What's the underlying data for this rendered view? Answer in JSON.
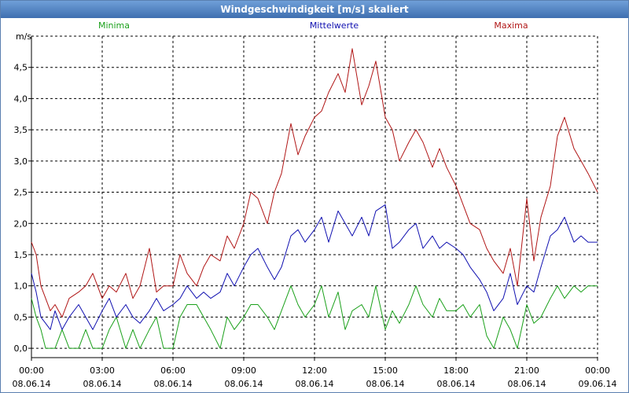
{
  "window": {
    "title": "Windgeschwindigkeit [m/s] skaliert"
  },
  "chart_data": {
    "type": "line",
    "title": "Windgeschwindigkeit [m/s] skaliert",
    "ylabel": "m/s",
    "ylim": [
      -0.15,
      5.0
    ],
    "xlim_hours": [
      0,
      24
    ],
    "y_ticks": [
      {
        "value": 0.0,
        "label": "0,0"
      },
      {
        "value": 0.5,
        "label": "0,5"
      },
      {
        "value": 1.0,
        "label": "1,0"
      },
      {
        "value": 1.5,
        "label": "1,5"
      },
      {
        "value": 2.0,
        "label": "2,0"
      },
      {
        "value": 2.5,
        "label": "2,5"
      },
      {
        "value": 3.0,
        "label": "3,0"
      },
      {
        "value": 3.5,
        "label": "3,5"
      },
      {
        "value": 4.0,
        "label": "4,0"
      },
      {
        "value": 4.5,
        "label": "4,5"
      }
    ],
    "x_ticks": [
      {
        "hour": 0,
        "time": "00:00",
        "date": "08.06.14"
      },
      {
        "hour": 3,
        "time": "03:00",
        "date": "08.06.14"
      },
      {
        "hour": 6,
        "time": "06:00",
        "date": "08.06.14"
      },
      {
        "hour": 9,
        "time": "09:00",
        "date": "08.06.14"
      },
      {
        "hour": 12,
        "time": "12:00",
        "date": "08.06.14"
      },
      {
        "hour": 15,
        "time": "15:00",
        "date": "08.06.14"
      },
      {
        "hour": 18,
        "time": "18:00",
        "date": "08.06.14"
      },
      {
        "hour": 21,
        "time": "21:00",
        "date": "08.06.14"
      },
      {
        "hour": 24,
        "time": "00:00",
        "date": "09.06.14"
      }
    ],
    "grid": true,
    "series": [
      {
        "name": "Minima",
        "color": "#1aa01a",
        "points": [
          [
            0.0,
            0.8
          ],
          [
            0.2,
            0.5
          ],
          [
            0.4,
            0.3
          ],
          [
            0.6,
            0.0
          ],
          [
            0.8,
            0.0
          ],
          [
            1.0,
            0.0
          ],
          [
            1.3,
            0.3
          ],
          [
            1.6,
            0.0
          ],
          [
            2.0,
            0.0
          ],
          [
            2.3,
            0.3
          ],
          [
            2.6,
            0.0
          ],
          [
            3.0,
            0.0
          ],
          [
            3.3,
            0.3
          ],
          [
            3.6,
            0.5
          ],
          [
            4.0,
            0.0
          ],
          [
            4.3,
            0.3
          ],
          [
            4.6,
            0.0
          ],
          [
            5.0,
            0.3
          ],
          [
            5.3,
            0.5
          ],
          [
            5.6,
            0.0
          ],
          [
            6.0,
            0.0
          ],
          [
            6.3,
            0.5
          ],
          [
            6.6,
            0.7
          ],
          [
            7.0,
            0.7
          ],
          [
            7.3,
            0.5
          ],
          [
            7.6,
            0.3
          ],
          [
            8.0,
            0.0
          ],
          [
            8.3,
            0.5
          ],
          [
            8.6,
            0.3
          ],
          [
            9.0,
            0.5
          ],
          [
            9.3,
            0.7
          ],
          [
            9.6,
            0.7
          ],
          [
            10.0,
            0.5
          ],
          [
            10.3,
            0.3
          ],
          [
            10.6,
            0.6
          ],
          [
            11.0,
            1.0
          ],
          [
            11.3,
            0.7
          ],
          [
            11.6,
            0.5
          ],
          [
            12.0,
            0.7
          ],
          [
            12.3,
            1.0
          ],
          [
            12.6,
            0.5
          ],
          [
            13.0,
            0.9
          ],
          [
            13.3,
            0.3
          ],
          [
            13.6,
            0.6
          ],
          [
            14.0,
            0.7
          ],
          [
            14.3,
            0.5
          ],
          [
            14.6,
            1.0
          ],
          [
            15.0,
            0.3
          ],
          [
            15.3,
            0.6
          ],
          [
            15.6,
            0.4
          ],
          [
            16.0,
            0.7
          ],
          [
            16.3,
            1.0
          ],
          [
            16.6,
            0.7
          ],
          [
            17.0,
            0.5
          ],
          [
            17.3,
            0.8
          ],
          [
            17.6,
            0.6
          ],
          [
            18.0,
            0.6
          ],
          [
            18.3,
            0.7
          ],
          [
            18.6,
            0.5
          ],
          [
            19.0,
            0.7
          ],
          [
            19.3,
            0.2
          ],
          [
            19.6,
            0.0
          ],
          [
            20.0,
            0.5
          ],
          [
            20.3,
            0.3
          ],
          [
            20.6,
            0.0
          ],
          [
            21.0,
            0.7
          ],
          [
            21.3,
            0.4
          ],
          [
            21.6,
            0.5
          ],
          [
            22.0,
            0.8
          ],
          [
            22.3,
            1.0
          ],
          [
            22.6,
            0.8
          ],
          [
            23.0,
            1.0
          ],
          [
            23.3,
            0.9
          ],
          [
            23.6,
            1.0
          ],
          [
            24.0,
            1.0
          ]
        ]
      },
      {
        "name": "Mittelwerte",
        "color": "#1010b0",
        "points": [
          [
            0.0,
            1.2
          ],
          [
            0.2,
            0.9
          ],
          [
            0.4,
            0.5
          ],
          [
            0.6,
            0.4
          ],
          [
            0.8,
            0.3
          ],
          [
            1.0,
            0.6
          ],
          [
            1.3,
            0.3
          ],
          [
            1.6,
            0.5
          ],
          [
            2.0,
            0.7
          ],
          [
            2.3,
            0.5
          ],
          [
            2.6,
            0.3
          ],
          [
            3.0,
            0.6
          ],
          [
            3.3,
            0.8
          ],
          [
            3.6,
            0.5
          ],
          [
            4.0,
            0.7
          ],
          [
            4.3,
            0.5
          ],
          [
            4.6,
            0.4
          ],
          [
            5.0,
            0.6
          ],
          [
            5.3,
            0.8
          ],
          [
            5.6,
            0.6
          ],
          [
            6.0,
            0.7
          ],
          [
            6.3,
            0.8
          ],
          [
            6.6,
            1.0
          ],
          [
            7.0,
            0.8
          ],
          [
            7.3,
            0.9
          ],
          [
            7.6,
            0.8
          ],
          [
            8.0,
            0.9
          ],
          [
            8.3,
            1.2
          ],
          [
            8.6,
            1.0
          ],
          [
            9.0,
            1.3
          ],
          [
            9.3,
            1.5
          ],
          [
            9.6,
            1.6
          ],
          [
            10.0,
            1.3
          ],
          [
            10.3,
            1.1
          ],
          [
            10.6,
            1.3
          ],
          [
            11.0,
            1.8
          ],
          [
            11.3,
            1.9
          ],
          [
            11.6,
            1.7
          ],
          [
            12.0,
            1.9
          ],
          [
            12.3,
            2.1
          ],
          [
            12.6,
            1.7
          ],
          [
            13.0,
            2.2
          ],
          [
            13.3,
            2.0
          ],
          [
            13.6,
            1.8
          ],
          [
            14.0,
            2.1
          ],
          [
            14.3,
            1.8
          ],
          [
            14.6,
            2.2
          ],
          [
            15.0,
            2.3
          ],
          [
            15.3,
            1.6
          ],
          [
            15.6,
            1.7
          ],
          [
            16.0,
            1.9
          ],
          [
            16.3,
            2.0
          ],
          [
            16.6,
            1.6
          ],
          [
            17.0,
            1.8
          ],
          [
            17.3,
            1.6
          ],
          [
            17.6,
            1.7
          ],
          [
            18.0,
            1.6
          ],
          [
            18.3,
            1.5
          ],
          [
            18.6,
            1.3
          ],
          [
            19.0,
            1.1
          ],
          [
            19.3,
            0.9
          ],
          [
            19.6,
            0.6
          ],
          [
            20.0,
            0.8
          ],
          [
            20.3,
            1.2
          ],
          [
            20.6,
            0.7
          ],
          [
            21.0,
            1.0
          ],
          [
            21.3,
            0.9
          ],
          [
            21.6,
            1.3
          ],
          [
            22.0,
            1.8
          ],
          [
            22.3,
            1.9
          ],
          [
            22.6,
            2.1
          ],
          [
            23.0,
            1.7
          ],
          [
            23.3,
            1.8
          ],
          [
            23.6,
            1.7
          ],
          [
            24.0,
            1.7
          ]
        ]
      },
      {
        "name": "Maxima",
        "color": "#b01515",
        "points": [
          [
            0.0,
            1.7
          ],
          [
            0.2,
            1.5
          ],
          [
            0.4,
            1.0
          ],
          [
            0.6,
            0.8
          ],
          [
            0.8,
            0.6
          ],
          [
            1.0,
            0.7
          ],
          [
            1.3,
            0.5
          ],
          [
            1.6,
            0.8
          ],
          [
            2.0,
            0.9
          ],
          [
            2.3,
            1.0
          ],
          [
            2.6,
            1.2
          ],
          [
            3.0,
            0.8
          ],
          [
            3.3,
            1.0
          ],
          [
            3.6,
            0.9
          ],
          [
            4.0,
            1.2
          ],
          [
            4.3,
            0.8
          ],
          [
            4.6,
            1.0
          ],
          [
            5.0,
            1.6
          ],
          [
            5.3,
            0.9
          ],
          [
            5.6,
            1.0
          ],
          [
            6.0,
            1.0
          ],
          [
            6.3,
            1.5
          ],
          [
            6.6,
            1.2
          ],
          [
            7.0,
            1.0
          ],
          [
            7.3,
            1.3
          ],
          [
            7.6,
            1.5
          ],
          [
            8.0,
            1.4
          ],
          [
            8.3,
            1.8
          ],
          [
            8.6,
            1.6
          ],
          [
            9.0,
            2.0
          ],
          [
            9.3,
            2.5
          ],
          [
            9.6,
            2.4
          ],
          [
            10.0,
            2.0
          ],
          [
            10.3,
            2.5
          ],
          [
            10.6,
            2.8
          ],
          [
            11.0,
            3.6
          ],
          [
            11.3,
            3.1
          ],
          [
            11.6,
            3.4
          ],
          [
            12.0,
            3.7
          ],
          [
            12.3,
            3.8
          ],
          [
            12.6,
            4.1
          ],
          [
            13.0,
            4.4
          ],
          [
            13.3,
            4.1
          ],
          [
            13.6,
            4.8
          ],
          [
            14.0,
            3.9
          ],
          [
            14.3,
            4.2
          ],
          [
            14.6,
            4.6
          ],
          [
            15.0,
            3.7
          ],
          [
            15.3,
            3.5
          ],
          [
            15.6,
            3.0
          ],
          [
            16.0,
            3.3
          ],
          [
            16.3,
            3.5
          ],
          [
            16.6,
            3.3
          ],
          [
            17.0,
            2.9
          ],
          [
            17.3,
            3.2
          ],
          [
            17.6,
            2.9
          ],
          [
            18.0,
            2.6
          ],
          [
            18.3,
            2.3
          ],
          [
            18.6,
            2.0
          ],
          [
            19.0,
            1.9
          ],
          [
            19.3,
            1.6
          ],
          [
            19.6,
            1.4
          ],
          [
            20.0,
            1.2
          ],
          [
            20.3,
            1.6
          ],
          [
            20.6,
            1.0
          ],
          [
            21.0,
            2.4
          ],
          [
            21.3,
            1.4
          ],
          [
            21.6,
            2.1
          ],
          [
            22.0,
            2.6
          ],
          [
            22.3,
            3.4
          ],
          [
            22.6,
            3.7
          ],
          [
            23.0,
            3.2
          ],
          [
            23.3,
            3.0
          ],
          [
            23.6,
            2.8
          ],
          [
            24.0,
            2.5
          ]
        ]
      }
    ]
  }
}
